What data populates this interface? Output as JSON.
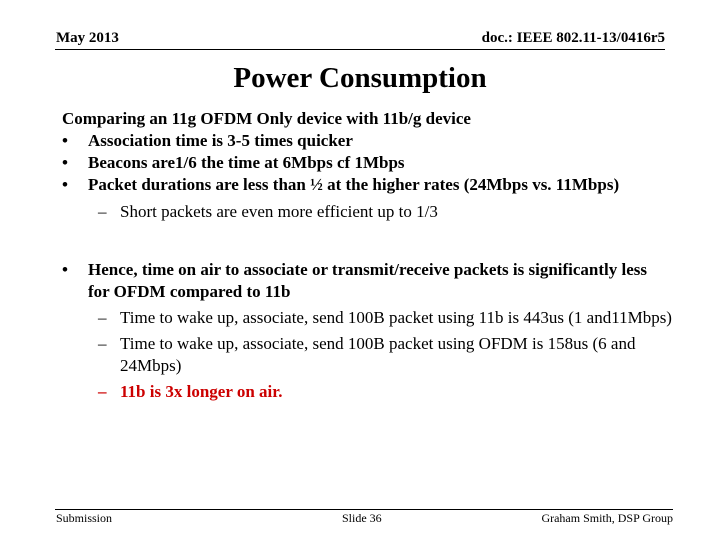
{
  "header": {
    "date": "May 2013",
    "doc": "doc.: IEEE 802.11-13/0416r5"
  },
  "title": "Power Consumption",
  "intro": "Comparing an 11g OFDM Only device with 11b/g device",
  "bullet_marker": "•",
  "dash_marker": "–",
  "bullets1": [
    "Association time is 3-5 times quicker",
    "Beacons are1/6 the time at 6Mbps cf 1Mbps",
    "Packet durations are less than ½ at the higher rates (24Mbps vs. 11Mbps)"
  ],
  "sub1": "Short packets are even more efficient up to 1/3",
  "bullet2": "Hence, time on air to associate or transmit/receive packets is significantly less for OFDM compared to 11b",
  "sub2": [
    "Time to wake up, associate, send 100B packet using 11b is 443us (1 and11Mbps)",
    "Time to wake up, associate, send 100B packet using OFDM is 158us (6 and 24Mbps)",
    "11b is 3x longer on air."
  ],
  "footer": {
    "left": "Submission",
    "center": "Slide 36",
    "right": "Graham Smith, DSP Group"
  }
}
